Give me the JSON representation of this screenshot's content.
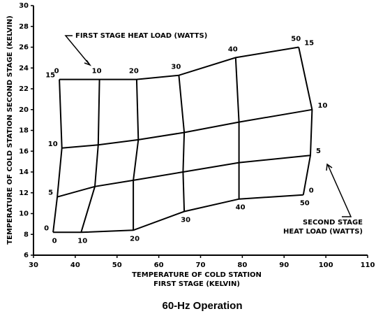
{
  "chart_data": {
    "type": "carpet",
    "title": "60-Hz Operation",
    "x_label": [
      "TEMPERATURE OF COLD STATION",
      "FIRST STAGE (KELVIN)"
    ],
    "y_label": "TEMPERATURE OF COLD STATION SECOND STAGE (KELVIN)",
    "annotations": {
      "first_stage": [
        "FIRST STAGE HEAT LOAD (WATTS)"
      ],
      "second_stage": [
        "SECOND STAGE",
        "HEAT LOAD (WATTS)"
      ]
    },
    "first_stage_loads": [
      0,
      10,
      20,
      30,
      40,
      50
    ],
    "series": [
      {
        "load": 0,
        "x": [
          34.7,
          41.4,
          53.9,
          66.1,
          79.2,
          94.6
        ],
        "values": [
          8.2,
          8.2,
          8.4,
          10.2,
          11.4,
          11.8
        ]
      },
      {
        "load": 5,
        "x": [
          35.7,
          44.7,
          53.9,
          65.8,
          79.2,
          96.3
        ],
        "values": [
          11.6,
          12.6,
          13.2,
          14.0,
          14.9,
          15.6
        ]
      },
      {
        "load": 10,
        "x": [
          36.8,
          45.5,
          55.1,
          66.1,
          79.2,
          96.7
        ],
        "values": [
          16.3,
          16.6,
          17.1,
          17.8,
          18.8,
          20.0
        ]
      },
      {
        "load": 15,
        "x": [
          36.2,
          45.8,
          54.7,
          64.8,
          78.4,
          93.5
        ],
        "values": [
          22.9,
          22.9,
          22.9,
          23.3,
          25.0,
          26.0
        ]
      }
    ],
    "color": "#000000",
    "xlim": [
      30,
      110
    ],
    "xticks": [
      30,
      40,
      50,
      60,
      70,
      80,
      90,
      100,
      110
    ],
    "ylim": [
      6,
      30
    ],
    "yticks": [
      6,
      8,
      10,
      12,
      14,
      16,
      18,
      20,
      22,
      24,
      26,
      28,
      30
    ]
  }
}
